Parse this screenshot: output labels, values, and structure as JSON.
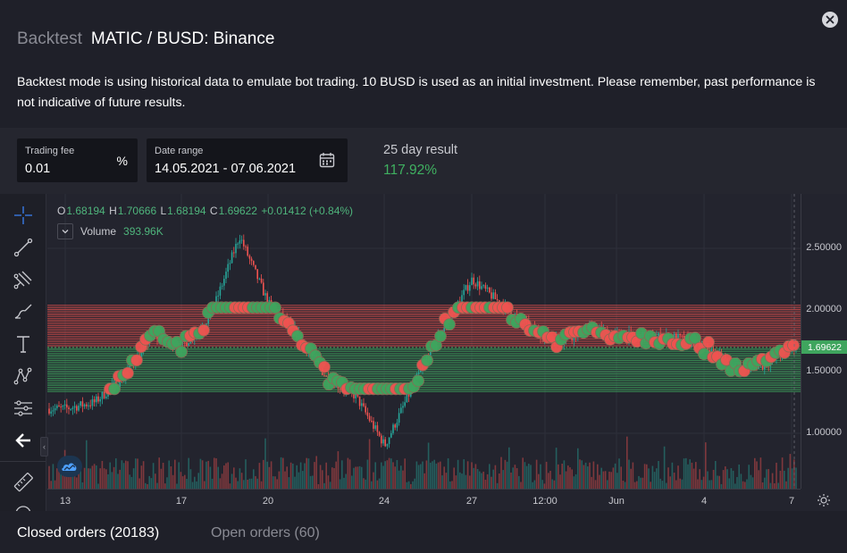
{
  "header": {
    "prefix": "Backtest",
    "title": "MATIC / BUSD: Binance"
  },
  "description": "Backtest mode is using historical data to emulate bot trading. 10 BUSD is used as an initial investment. Please remember, past performance is not indicative of future results.",
  "settings": {
    "fee_label": "Trading fee",
    "fee_value": "0.01",
    "fee_unit": "%",
    "range_label": "Date range",
    "range_value": "14.05.2021 - 07.06.2021",
    "result_label": "25 day result",
    "result_value": "117.92%"
  },
  "chart": {
    "ohlc": {
      "open_label": "O",
      "open": "1.68194",
      "high_label": "H",
      "high": "1.70666",
      "low_label": "L",
      "low": "1.68194",
      "close_label": "C",
      "close": "1.69622",
      "change": "+0.01412 (+0.84%)"
    },
    "volume_label": "Volume",
    "volume_value": "393.96K",
    "y_ticks": [
      "2.50000",
      "2.00000",
      "1.50000",
      "1.00000"
    ],
    "current_price": "1.69622",
    "x_ticks": [
      "13",
      "17",
      "20",
      "24",
      "27",
      "12:00",
      "Jun",
      "4",
      "7"
    ],
    "up_color": "#26a69a",
    "down_color": "#ef5350",
    "sell_order_color": "#ef5350",
    "buy_order_color": "#3fa55e"
  },
  "chart_data": {
    "type": "line",
    "series": [
      {
        "x": [
          "13",
          "14",
          "15",
          "16",
          "17",
          "18",
          "19",
          "20",
          "21",
          "22",
          "23",
          "24",
          "25",
          "26",
          "27",
          "28",
          "29",
          "30",
          "31",
          "Jun",
          "2",
          "3",
          "4",
          "5",
          "6",
          "7"
        ],
        "values": [
          1.2,
          1.25,
          1.45,
          1.8,
          1.7,
          1.95,
          2.6,
          2.05,
          1.8,
          1.45,
          1.3,
          0.9,
          1.4,
          1.85,
          2.25,
          2.05,
          1.85,
          1.75,
          1.85,
          1.8,
          1.78,
          1.78,
          1.7,
          1.55,
          1.55,
          1.7
        ]
      }
    ],
    "ylim": [
      0.85,
      2.75
    ],
    "y_ticks": [
      2.5,
      2.0,
      1.5,
      1.0
    ],
    "grid": true
  },
  "tabs": {
    "closed": "Closed orders (20183)",
    "open": "Open orders (60)"
  },
  "icons": {
    "close": "close-icon",
    "calendar": "calendar-icon",
    "crosshair": "crosshair-icon",
    "trend_line": "trend-line-icon",
    "pitchfork": "pitchfork-icon",
    "brush": "brush-icon",
    "text": "text-icon",
    "pattern": "pattern-icon",
    "prediction": "prediction-icon",
    "back": "back-arrow-icon",
    "ruler": "ruler-icon",
    "settings": "gear-icon"
  }
}
